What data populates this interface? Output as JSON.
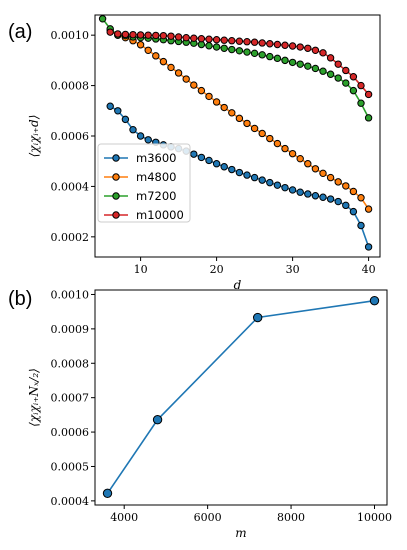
{
  "chart_data": [
    {
      "panel_label": "(a)",
      "type": "line",
      "xlabel": "d",
      "ylabel": "⟨χᵢχᵢ₊d⟩",
      "xlim": [
        4,
        41.5
      ],
      "ylim": [
        0.00012,
        0.00108
      ],
      "x_ticks": [
        10,
        20,
        30,
        40
      ],
      "y_ticks": [
        0.0002,
        0.0004,
        0.0006,
        0.0008,
        0.001
      ],
      "y_tick_labels": [
        "0.0002",
        "0.0004",
        "0.0006",
        "0.0008",
        "0.0010"
      ],
      "legend_position": "lower-left",
      "series": [
        {
          "name": "m3600",
          "color": "#1f77b4",
          "x": [
            6,
            7,
            8,
            9,
            10,
            11,
            12,
            13,
            14,
            15,
            16,
            17,
            18,
            19,
            20,
            21,
            22,
            23,
            24,
            25,
            26,
            27,
            28,
            29,
            30,
            31,
            32,
            33,
            34,
            35,
            36,
            37,
            38,
            39,
            40
          ],
          "values": [
            0.000718,
            0.0007,
            0.000666,
            0.000625,
            0.0006,
            0.000585,
            0.000575,
            0.000565,
            0.000557,
            0.00055,
            0.00054,
            0.000528,
            0.000515,
            0.000503,
            0.00049,
            0.000478,
            0.000467,
            0.000455,
            0.000445,
            0.000435,
            0.000425,
            0.000415,
            0.000405,
            0.000395,
            0.000386,
            0.000377,
            0.00037,
            0.000363,
            0.000357,
            0.00035,
            0.00034,
            0.000325,
            0.0003,
            0.000245,
            0.00016
          ]
        },
        {
          "name": "m4800",
          "color": "#ff7f0e",
          "x": [
            6,
            7,
            8,
            9,
            10,
            11,
            12,
            13,
            14,
            15,
            16,
            17,
            18,
            19,
            20,
            21,
            22,
            23,
            24,
            25,
            26,
            27,
            28,
            29,
            30,
            31,
            32,
            33,
            34,
            35,
            36,
            37,
            38,
            39,
            40
          ],
          "values": [
            0.00102,
            0.001,
            0.00099,
            0.000978,
            0.000962,
            0.00094,
            0.000918,
            0.000895,
            0.000872,
            0.00085,
            0.000826,
            0.000802,
            0.00078,
            0.000757,
            0.000735,
            0.000713,
            0.000692,
            0.00067,
            0.00065,
            0.00063,
            0.00061,
            0.00059,
            0.00057,
            0.00055,
            0.00053,
            0.00051,
            0.00049,
            0.00047,
            0.000452,
            0.000435,
            0.000418,
            0.000402,
            0.00038,
            0.000355,
            0.00031
          ]
        },
        {
          "name": "m7200",
          "color": "#2ca02c",
          "x": [
            5,
            6,
            7,
            8,
            9,
            10,
            11,
            12,
            13,
            14,
            15,
            16,
            17,
            18,
            19,
            20,
            21,
            22,
            23,
            24,
            25,
            26,
            27,
            28,
            29,
            30,
            31,
            32,
            33,
            34,
            35,
            36,
            37,
            38,
            39,
            40
          ],
          "values": [
            0.001065,
            0.001025,
            0.001,
            0.000998,
            0.000993,
            0.00099,
            0.000988,
            0.000985,
            0.000982,
            0.000978,
            0.000975,
            0.000972,
            0.000968,
            0.000963,
            0.000958,
            0.000953,
            0.000948,
            0.000943,
            0.000938,
            0.000933,
            0.000928,
            0.000922,
            0.000915,
            0.000908,
            0.0009,
            0.000892,
            0.000885,
            0.000877,
            0.000868,
            0.000857,
            0.000845,
            0.00083,
            0.00081,
            0.00078,
            0.00073,
            0.000672
          ]
        },
        {
          "name": "m10000",
          "color": "#d62728",
          "x": [
            6,
            7,
            8,
            9,
            10,
            11,
            12,
            13,
            14,
            15,
            16,
            17,
            18,
            19,
            20,
            21,
            22,
            23,
            24,
            25,
            26,
            27,
            28,
            29,
            30,
            31,
            32,
            33,
            34,
            35,
            36,
            37,
            38,
            39,
            40
          ],
          "values": [
            0.001012,
            0.001005,
            0.001003,
            0.001002,
            0.001001,
            0.001,
            0.000999,
            0.000998,
            0.000996,
            0.000993,
            0.00099,
            0.000988,
            0.000986,
            0.000984,
            0.000982,
            0.00098,
            0.000978,
            0.000976,
            0.000974,
            0.000972,
            0.000969,
            0.000966,
            0.000963,
            0.00096,
            0.000957,
            0.000953,
            0.000948,
            0.00094,
            0.00093,
            0.00091,
            0.000885,
            0.00086,
            0.000835,
            0.0008,
            0.000765
          ]
        }
      ]
    },
    {
      "panel_label": "(b)",
      "type": "line",
      "xlabel": "m",
      "ylabel": "⟨χᵢχᵢ₊Nₓ/₂⟩",
      "xlim": [
        3300,
        10300
      ],
      "ylim": [
        0.000388,
        0.001013
      ],
      "x_ticks": [
        4000,
        6000,
        8000,
        10000
      ],
      "y_ticks": [
        0.0004,
        0.0005,
        0.0006,
        0.0007,
        0.0008,
        0.0009,
        0.001
      ],
      "y_tick_labels": [
        "0.0004",
        "0.0005",
        "0.0006",
        "0.0007",
        "0.0008",
        "0.0009",
        "0.0010"
      ],
      "series": [
        {
          "color": "#1f77b4",
          "x": [
            3600,
            4800,
            7200,
            10000
          ],
          "values": [
            0.000422,
            0.000636,
            0.000933,
            0.000982
          ]
        }
      ]
    }
  ]
}
